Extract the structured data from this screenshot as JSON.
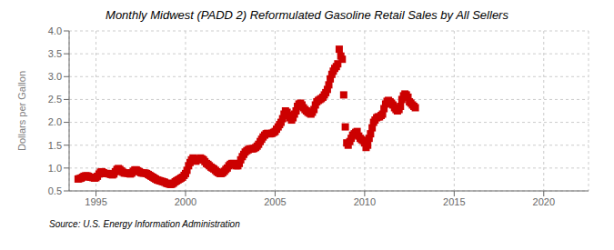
{
  "chart_data": {
    "type": "scatter",
    "title": "Monthly Midwest (PADD 2) Reformulated Gasoline Retail Sales by All Sellers",
    "y_label": "Dollars per Gallon",
    "annotations": [
      "Source: U.S. Energy Information Administration"
    ],
    "color": "#cc0000",
    "marker": "square",
    "grid": true,
    "xlim": [
      1993.5,
      2022.5
    ],
    "ylim": [
      0.5,
      4.0
    ],
    "xticks": [
      1995,
      2000,
      2005,
      2010,
      2015,
      2020
    ],
    "yticks": [
      0.5,
      {
        "value": 1.0,
        "label": "1.0"
      },
      1.5,
      {
        "value": 2.0,
        "label": "2.0"
      },
      2.5,
      {
        "value": 3.0,
        "label": "3.0"
      },
      3.5,
      {
        "value": 4.0,
        "label": "4.0"
      }
    ],
    "x": [
      1994.0,
      1994.08,
      1994.17,
      1994.25,
      1994.33,
      1994.42,
      1994.5,
      1994.58,
      1994.67,
      1994.75,
      1994.83,
      1994.92,
      1995.0,
      1995.08,
      1995.17,
      1995.25,
      1995.33,
      1995.42,
      1995.5,
      1995.58,
      1995.67,
      1995.75,
      1995.83,
      1995.92,
      1996.0,
      1996.08,
      1996.17,
      1996.25,
      1996.33,
      1996.42,
      1996.5,
      1996.58,
      1996.67,
      1996.75,
      1996.83,
      1996.92,
      1997.0,
      1997.08,
      1997.17,
      1997.25,
      1997.33,
      1997.42,
      1997.5,
      1997.58,
      1997.67,
      1997.75,
      1997.83,
      1997.92,
      1998.0,
      1998.08,
      1998.17,
      1998.25,
      1998.33,
      1998.42,
      1998.5,
      1998.58,
      1998.67,
      1998.75,
      1998.83,
      1998.92,
      1999.0,
      1999.08,
      1999.17,
      1999.25,
      1999.33,
      1999.42,
      1999.5,
      1999.58,
      1999.67,
      1999.75,
      1999.83,
      1999.92,
      2000.0,
      2000.08,
      2000.17,
      2000.25,
      2000.33,
      2000.42,
      2000.5,
      2000.58,
      2000.67,
      2000.75,
      2000.83,
      2000.92,
      2001.0,
      2001.08,
      2001.17,
      2001.25,
      2001.33,
      2001.42,
      2001.5,
      2001.58,
      2001.67,
      2001.75,
      2001.83,
      2001.92,
      2002.0,
      2002.08,
      2002.17,
      2002.25,
      2002.33,
      2002.42,
      2002.5,
      2002.58,
      2002.67,
      2002.75,
      2002.83,
      2002.92,
      2003.0,
      2003.08,
      2003.17,
      2003.25,
      2003.33,
      2003.42,
      2003.5,
      2003.58,
      2003.67,
      2003.75,
      2003.83,
      2003.92,
      2004.0,
      2004.08,
      2004.17,
      2004.25,
      2004.33,
      2004.42,
      2004.5,
      2004.58,
      2004.67,
      2004.75,
      2004.83,
      2004.92,
      2005.0,
      2005.08,
      2005.17,
      2005.25,
      2005.33,
      2005.42,
      2005.5,
      2005.58,
      2005.67,
      2005.75,
      2005.83,
      2005.92,
      2006.0,
      2006.08,
      2006.17,
      2006.25,
      2006.33,
      2006.42,
      2006.5,
      2006.58,
      2006.67,
      2006.75,
      2006.83,
      2006.92,
      2007.0,
      2007.08,
      2007.17,
      2007.25,
      2007.33,
      2007.42,
      2007.5,
      2007.58,
      2007.67,
      2007.75,
      2007.83,
      2007.92,
      2008.0,
      2008.08,
      2008.17,
      2008.25,
      2008.33,
      2008.42,
      2008.5,
      2008.58,
      2008.67,
      2008.75,
      2008.83,
      2008.92,
      2009.0,
      2009.08,
      2009.17,
      2009.25,
      2009.33,
      2009.42,
      2009.5,
      2009.58,
      2009.67,
      2009.75,
      2009.83,
      2009.92,
      2010.0,
      2010.08,
      2010.17,
      2010.25,
      2010.33,
      2010.42,
      2010.5,
      2010.58,
      2010.67,
      2010.75,
      2010.83,
      2010.92,
      2011.0,
      2011.08,
      2011.17,
      2011.25,
      2011.33,
      2011.42,
      2011.5,
      2011.58,
      2011.67,
      2011.75,
      2011.83,
      2011.92,
      2012.0,
      2012.08,
      2012.17,
      2012.25,
      2012.33,
      2012.42,
      2012.5,
      2012.58,
      2012.67,
      2012.75,
      2012.83
    ],
    "values": [
      0.76,
      0.77,
      0.78,
      0.8,
      0.82,
      0.83,
      0.83,
      0.82,
      0.8,
      0.8,
      0.79,
      0.78,
      0.79,
      0.82,
      0.87,
      0.91,
      0.92,
      0.9,
      0.88,
      0.88,
      0.88,
      0.87,
      0.86,
      0.85,
      0.87,
      0.92,
      0.97,
      0.99,
      0.97,
      0.94,
      0.91,
      0.89,
      0.89,
      0.89,
      0.88,
      0.87,
      0.89,
      0.93,
      0.96,
      0.96,
      0.94,
      0.92,
      0.9,
      0.89,
      0.89,
      0.89,
      0.88,
      0.86,
      0.84,
      0.82,
      0.8,
      0.78,
      0.76,
      0.74,
      0.73,
      0.72,
      0.71,
      0.7,
      0.69,
      0.67,
      0.66,
      0.65,
      0.64,
      0.65,
      0.67,
      0.7,
      0.72,
      0.74,
      0.76,
      0.78,
      0.8,
      0.84,
      0.88,
      0.95,
      1.05,
      1.12,
      1.18,
      1.22,
      1.18,
      1.15,
      1.18,
      1.2,
      1.22,
      1.2,
      1.18,
      1.14,
      1.1,
      1.08,
      1.05,
      1.02,
      1.0,
      0.98,
      0.95,
      0.92,
      0.9,
      0.88,
      0.88,
      0.9,
      0.93,
      0.97,
      1.0,
      1.05,
      1.08,
      1.1,
      1.1,
      1.08,
      1.05,
      1.05,
      1.1,
      1.18,
      1.25,
      1.3,
      1.35,
      1.38,
      1.4,
      1.42,
      1.42,
      1.42,
      1.43,
      1.45,
      1.48,
      1.52,
      1.58,
      1.63,
      1.68,
      1.72,
      1.75,
      1.76,
      1.75,
      1.75,
      1.76,
      1.78,
      1.8,
      1.85,
      1.9,
      1.95,
      2.0,
      2.08,
      2.18,
      2.25,
      2.22,
      2.15,
      2.1,
      2.05,
      2.1,
      2.18,
      2.25,
      2.35,
      2.4,
      2.42,
      2.38,
      2.32,
      2.28,
      2.25,
      2.22,
      2.2,
      2.18,
      2.22,
      2.28,
      2.38,
      2.45,
      2.48,
      2.5,
      2.52,
      2.55,
      2.6,
      2.65,
      2.72,
      2.82,
      2.95,
      3.05,
      3.12,
      3.18,
      3.22,
      3.28,
      3.6,
      3.45,
      3.38,
      2.6,
      1.9,
      1.55,
      1.5,
      1.58,
      1.65,
      1.72,
      1.75,
      1.78,
      1.8,
      1.7,
      1.65,
      1.62,
      1.6,
      1.55,
      1.45,
      1.5,
      1.65,
      1.75,
      1.88,
      2.0,
      2.05,
      2.1,
      2.12,
      2.12,
      2.15,
      2.18,
      2.3,
      2.4,
      2.46,
      2.48,
      2.45,
      2.42,
      2.38,
      2.32,
      2.28,
      2.25,
      2.28,
      2.35,
      2.5,
      2.58,
      2.62,
      2.6,
      2.55,
      2.45,
      2.42,
      2.38,
      2.35,
      2.32
    ]
  }
}
